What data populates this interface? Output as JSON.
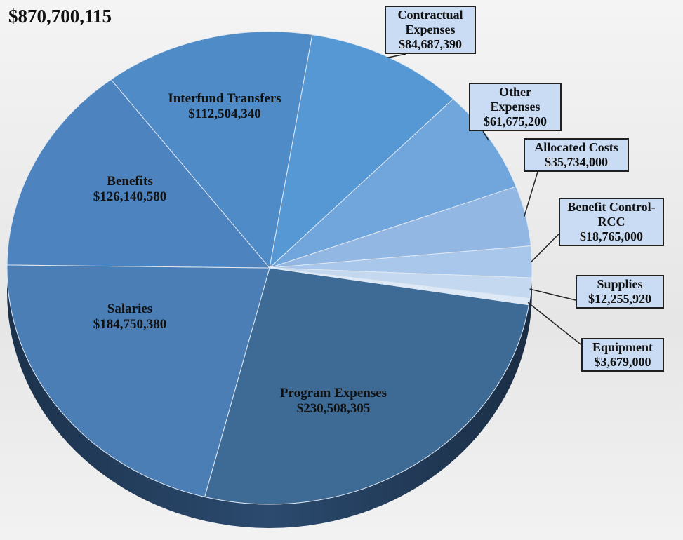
{
  "chart_data": {
    "type": "pie",
    "title": "$870,700,115",
    "categories": [
      "Program Expenses",
      "Salaries",
      "Benefits",
      "Interfund Transfers",
      "Contractual Expenses",
      "Other Expenses",
      "Allocated Costs",
      "Benefit Control-RCC",
      "Supplies",
      "Equipment"
    ],
    "values": [
      230508305,
      184750380,
      126140580,
      112504340,
      84687390,
      61675200,
      35734000,
      18765000,
      12255920,
      3679000
    ],
    "value_labels": [
      "$230,508,305",
      "$184,750,380",
      "$126,140,580",
      "$112,504,340",
      "$84,687,390",
      "$61,675,200",
      "$35,734,000",
      "$18,765,000",
      "$12,255,920",
      "$3,679,000"
    ],
    "colors": [
      "#3e6b96",
      "#4a7eb5",
      "#4d84bf",
      "#4f8bc6",
      "#5698d4",
      "#70a6dc",
      "#93b7e3",
      "#a9c7ea",
      "#c4d8f0",
      "#dde9f7"
    ]
  }
}
